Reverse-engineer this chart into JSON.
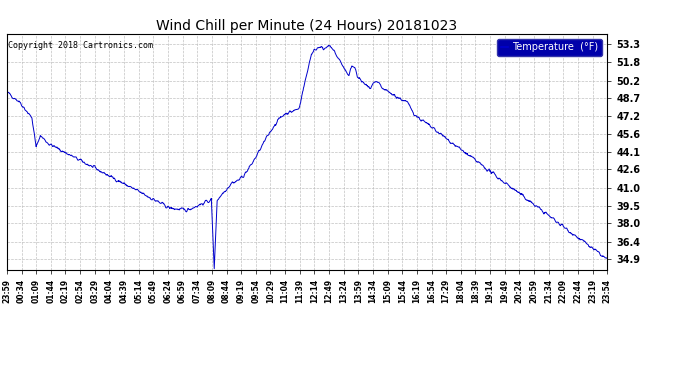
{
  "title": "Wind Chill per Minute (24 Hours) 20181023",
  "copyright_text": "Copyright 2018 Cartronics.com",
  "legend_label": "Temperature  (°F)",
  "line_color": "#0000CC",
  "background_color": "#ffffff",
  "plot_bg_color": "#ffffff",
  "grid_color": "#bbbbbb",
  "yticks": [
    34.9,
    36.4,
    38.0,
    39.5,
    41.0,
    42.6,
    44.1,
    45.6,
    47.2,
    48.7,
    50.2,
    51.8,
    53.3
  ],
  "ylim": [
    34.0,
    54.2
  ],
  "xtick_labels": [
    "23:59",
    "00:34",
    "01:09",
    "01:44",
    "02:19",
    "02:54",
    "03:29",
    "04:04",
    "04:39",
    "05:14",
    "05:49",
    "06:24",
    "06:59",
    "07:34",
    "08:09",
    "08:44",
    "09:19",
    "09:54",
    "10:29",
    "11:04",
    "11:39",
    "12:14",
    "12:49",
    "13:24",
    "13:59",
    "14:34",
    "15:09",
    "15:44",
    "16:19",
    "16:54",
    "17:29",
    "18:04",
    "18:39",
    "19:14",
    "19:49",
    "20:24",
    "20:59",
    "21:34",
    "22:09",
    "22:44",
    "23:19",
    "23:54"
  ],
  "n_xticks": 42,
  "legend_bg": "#0000AA",
  "legend_text_color": "#ffffff"
}
